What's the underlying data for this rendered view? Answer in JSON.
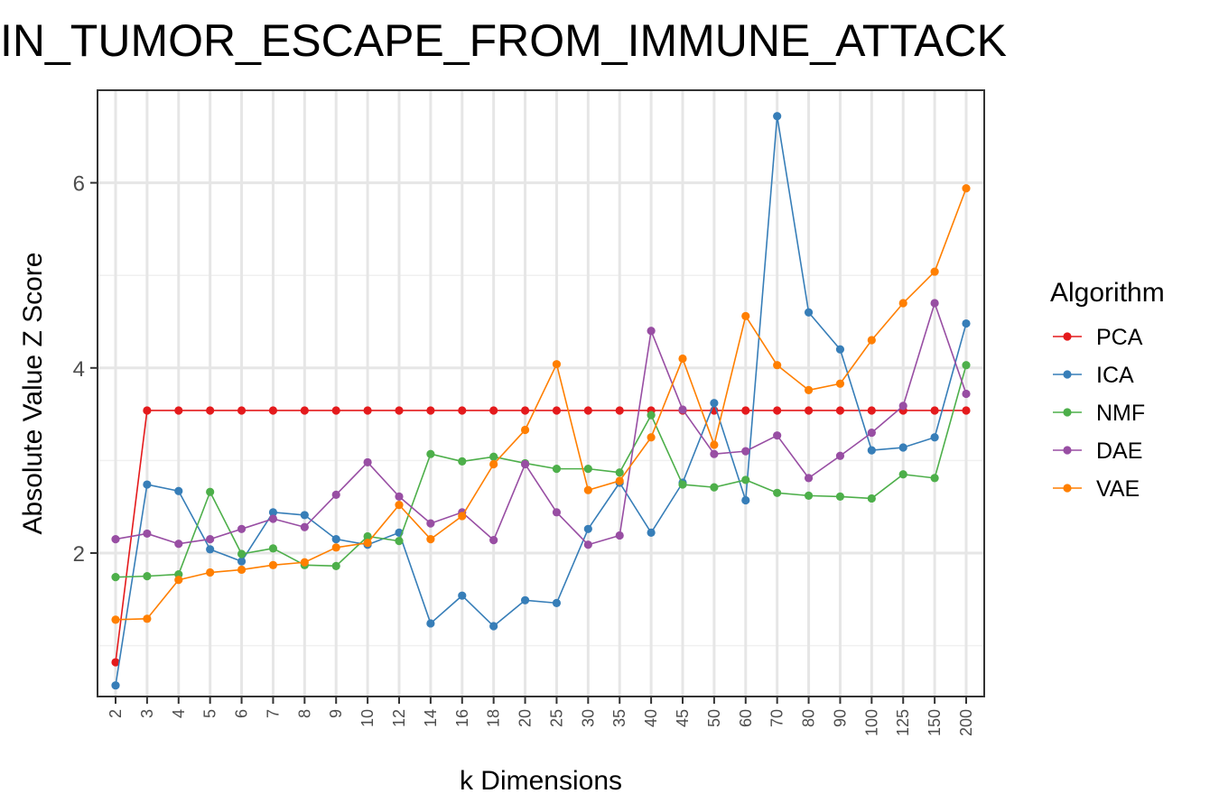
{
  "chart_data": {
    "type": "line",
    "title": "IN_TUMOR_ESCAPE_FROM_IMMUNE_ATTACK",
    "xlabel": "k Dimensions",
    "ylabel": "Absolute Value Z Score",
    "categories": [
      "2",
      "3",
      "4",
      "5",
      "6",
      "7",
      "8",
      "9",
      "10",
      "12",
      "14",
      "16",
      "18",
      "20",
      "25",
      "30",
      "35",
      "40",
      "45",
      "50",
      "60",
      "70",
      "80",
      "90",
      "100",
      "125",
      "150",
      "200"
    ],
    "ylim": [
      0.45,
      7.0
    ],
    "yticks": [
      2,
      4,
      6
    ],
    "ytick_labels": [
      "2",
      "4",
      "6"
    ],
    "grid": true,
    "legend": {
      "title": "Algorithm",
      "placement": "right"
    },
    "series": [
      {
        "name": "PCA",
        "color": "#e41a1c",
        "values": [
          0.82,
          3.54,
          3.54,
          3.54,
          3.54,
          3.54,
          3.54,
          3.54,
          3.54,
          3.54,
          3.54,
          3.54,
          3.54,
          3.54,
          3.54,
          3.54,
          3.54,
          3.54,
          3.54,
          3.54,
          3.54,
          3.54,
          3.54,
          3.54,
          3.54,
          3.54,
          3.54,
          3.54
        ]
      },
      {
        "name": "ICA",
        "color": "#377eb8",
        "values": [
          0.57,
          2.74,
          2.67,
          2.04,
          1.91,
          2.44,
          2.41,
          2.15,
          2.09,
          2.22,
          1.24,
          1.54,
          1.21,
          1.49,
          1.46,
          2.26,
          2.76,
          2.22,
          2.76,
          3.62,
          2.57,
          6.72,
          4.6,
          4.2,
          3.11,
          3.14,
          3.25,
          4.48
        ]
      },
      {
        "name": "NMF",
        "color": "#4daf4a",
        "values": [
          1.74,
          1.75,
          1.77,
          2.66,
          1.99,
          2.05,
          1.87,
          1.86,
          2.18,
          2.13,
          3.07,
          2.99,
          3.04,
          2.97,
          2.91,
          2.91,
          2.87,
          3.49,
          2.74,
          2.71,
          2.79,
          2.65,
          2.62,
          2.61,
          2.59,
          2.85,
          2.81,
          4.03
        ]
      },
      {
        "name": "DAE",
        "color": "#984ea3",
        "values": [
          2.15,
          2.21,
          2.1,
          2.15,
          2.26,
          2.37,
          2.28,
          2.63,
          2.98,
          2.61,
          2.32,
          2.44,
          2.14,
          2.96,
          2.44,
          2.09,
          2.19,
          4.4,
          3.55,
          3.07,
          3.1,
          3.27,
          2.81,
          3.05,
          3.3,
          3.59,
          4.7,
          3.72
        ]
      },
      {
        "name": "VAE",
        "color": "#ff7f00",
        "values": [
          1.28,
          1.29,
          1.71,
          1.79,
          1.82,
          1.87,
          1.9,
          2.06,
          2.11,
          2.52,
          2.15,
          2.4,
          2.96,
          3.33,
          4.04,
          2.68,
          2.78,
          3.25,
          4.1,
          3.17,
          4.56,
          4.03,
          3.76,
          3.83,
          4.3,
          4.7,
          5.04,
          5.94
        ]
      }
    ]
  }
}
